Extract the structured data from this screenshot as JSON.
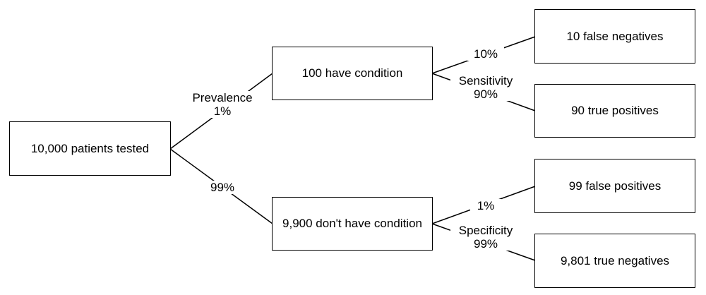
{
  "nodes": {
    "root": "10,000 patients tested",
    "has_condition": "100 have condition",
    "no_condition": "9,900 don't have condition",
    "false_negatives": "10 false negatives",
    "true_positives": "90 true positives",
    "false_positives": "99 false positives",
    "true_negatives": "9,801 true negatives"
  },
  "edges": {
    "prevalence": {
      "name": "Prevalence",
      "value": "1%"
    },
    "no_condition_share": {
      "value": "99%"
    },
    "miss_rate": {
      "value": "10%"
    },
    "sensitivity": {
      "name": "Sensitivity",
      "value": "90%"
    },
    "false_positive_rate": {
      "value": "1%"
    },
    "specificity": {
      "name": "Specificity",
      "value": "99%"
    }
  }
}
